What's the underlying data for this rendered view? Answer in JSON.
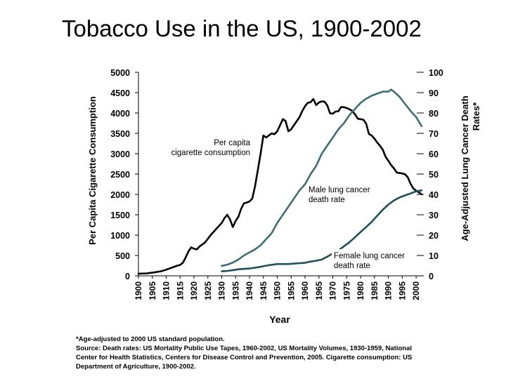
{
  "title": "Tobacco Use in the US, 1900-2002",
  "colors": {
    "cigarette": "#000000",
    "male": "#3d6e78",
    "female": "#1f4f5c"
  },
  "chart_data": {
    "type": "line",
    "title": "Tobacco Use in the US, 1900-2002",
    "xlabel": "Year",
    "ylabel_left": "Per Capita Cigarette Consumption",
    "ylabel_right": "Age-Adjusted Lung Cancer Death Rates*",
    "left_axis": {
      "min": 0,
      "max": 5000,
      "ticks": [
        "0",
        "500",
        "1000",
        "1500",
        "2000",
        "2500",
        "3000",
        "3500",
        "4000",
        "4500",
        "5000"
      ]
    },
    "right_axis": {
      "min": 0,
      "max": 100,
      "ticks": [
        "0",
        "10",
        "20",
        "30",
        "40",
        "50",
        "60",
        "70",
        "80",
        "90",
        "100"
      ]
    },
    "x_ticks": [
      "1900",
      "1905",
      "1910",
      "1915",
      "1920",
      "1925",
      "1930",
      "1935",
      "1940",
      "1945",
      "1950",
      "1955",
      "1960",
      "1965",
      "1970",
      "1975",
      "1980",
      "1985",
      "1990",
      "1995",
      "2000"
    ],
    "x_range": [
      1900,
      2002
    ],
    "series": [
      {
        "name": "Per capita cigarette consumption",
        "label": "Per capita cigarette consumption",
        "axis": "left",
        "x": [
          1900,
          1903,
          1905,
          1908,
          1910,
          1912,
          1914,
          1915,
          1916,
          1917,
          1918,
          1919,
          1920,
          1921,
          1922,
          1924,
          1926,
          1928,
          1930,
          1931,
          1932,
          1933,
          1934,
          1935,
          1936,
          1937,
          1938,
          1939,
          1940,
          1941,
          1942,
          1943,
          1944,
          1945,
          1946,
          1947,
          1948,
          1949,
          1950,
          1951,
          1952,
          1953,
          1954,
          1955,
          1956,
          1957,
          1958,
          1959,
          1960,
          1961,
          1962,
          1963,
          1964,
          1965,
          1966,
          1967,
          1968,
          1969,
          1970,
          1971,
          1972,
          1973,
          1974,
          1975,
          1976,
          1977,
          1978,
          1979,
          1980,
          1981,
          1982,
          1983,
          1984,
          1985,
          1986,
          1987,
          1988,
          1989,
          1990,
          1991,
          1992,
          1993,
          1994,
          1995,
          1996,
          1997,
          1998,
          1999,
          2000,
          2001,
          2002
        ],
        "values": [
          54,
          60,
          80,
          110,
          151,
          200,
          250,
          267,
          320,
          450,
          600,
          700,
          665,
          650,
          720,
          820,
          1000,
          1150,
          1300,
          1420,
          1500,
          1380,
          1200,
          1350,
          1450,
          1650,
          1780,
          1800,
          1828,
          1900,
          2200,
          2600,
          3000,
          3449,
          3400,
          3450,
          3500,
          3480,
          3552,
          3700,
          3850,
          3800,
          3550,
          3600,
          3700,
          3800,
          3900,
          4050,
          4171,
          4250,
          4265,
          4345,
          4195,
          4259,
          4287,
          4280,
          4186,
          3993,
          3985,
          4037,
          4043,
          4148,
          4141,
          4123,
          4092,
          4051,
          3967,
          3861,
          3849,
          3836,
          3739,
          3488,
          3446,
          3370,
          3274,
          3197,
          3096,
          2926,
          2826,
          2720,
          2640,
          2539,
          2524,
          2515,
          2494,
          2423,
          2261,
          2146,
          2092,
          2051,
          2000
        ]
      },
      {
        "name": "Male lung cancer death rate",
        "label": "Male lung cancer death rate",
        "axis": "right",
        "x": [
          1930,
          1932,
          1934,
          1936,
          1938,
          1940,
          1942,
          1944,
          1946,
          1948,
          1950,
          1952,
          1954,
          1956,
          1958,
          1960,
          1962,
          1964,
          1966,
          1968,
          1970,
          1972,
          1974,
          1976,
          1978,
          1980,
          1982,
          1984,
          1986,
          1988,
          1990,
          1991,
          1992,
          1994,
          1996,
          1998,
          2000,
          2002
        ],
        "values": [
          4.9,
          5.5,
          6.5,
          8.0,
          10.0,
          11.5,
          13.0,
          15.0,
          18.0,
          21.0,
          26.0,
          30.0,
          34.0,
          38.0,
          42.0,
          45.0,
          50.0,
          54.0,
          60.0,
          64.0,
          68.0,
          72.0,
          75.0,
          79.0,
          82.0,
          85.0,
          87.0,
          88.5,
          89.5,
          90.5,
          90.5,
          91.5,
          90.5,
          88.0,
          84.5,
          81.0,
          78.0,
          73.5
        ]
      },
      {
        "name": "Female lung cancer death rate",
        "label": "Female lung cancer death rate",
        "axis": "right",
        "x": [
          1930,
          1932,
          1934,
          1936,
          1938,
          1940,
          1942,
          1944,
          1946,
          1948,
          1950,
          1952,
          1954,
          1956,
          1958,
          1960,
          1962,
          1964,
          1966,
          1968,
          1970,
          1972,
          1974,
          1976,
          1978,
          1980,
          1982,
          1984,
          1986,
          1988,
          1990,
          1992,
          1994,
          1996,
          1998,
          2000,
          2002
        ],
        "values": [
          2.2,
          2.4,
          2.8,
          3.2,
          3.4,
          3.6,
          4.0,
          4.4,
          5.0,
          5.4,
          5.8,
          5.8,
          5.8,
          6.0,
          6.2,
          6.4,
          7.0,
          7.4,
          8.0,
          9.4,
          11.0,
          12.5,
          14.5,
          16.5,
          19.0,
          21.5,
          24.0,
          26.5,
          29.5,
          32.5,
          35.0,
          37.0,
          38.5,
          39.5,
          40.5,
          41.5,
          42.0
        ]
      }
    ],
    "annotations": [
      "Per capita cigarette consumption",
      "Male lung cancer death rate",
      "Female lung cancer death rate"
    ]
  },
  "footnote": {
    "line1": "*Age-adjusted to 2000 US standard population.",
    "line2": "Source: Death rates: US Mortality Public Use Tapes, 1960-2002, US Mortality Volumes, 1930-1959, National",
    "line3": "Center for Health Statistics, Centers for Disease Control and Prevention, 2005. Cigarette consumption: US",
    "line4": "Department of Agriculture, 1900-2002."
  }
}
